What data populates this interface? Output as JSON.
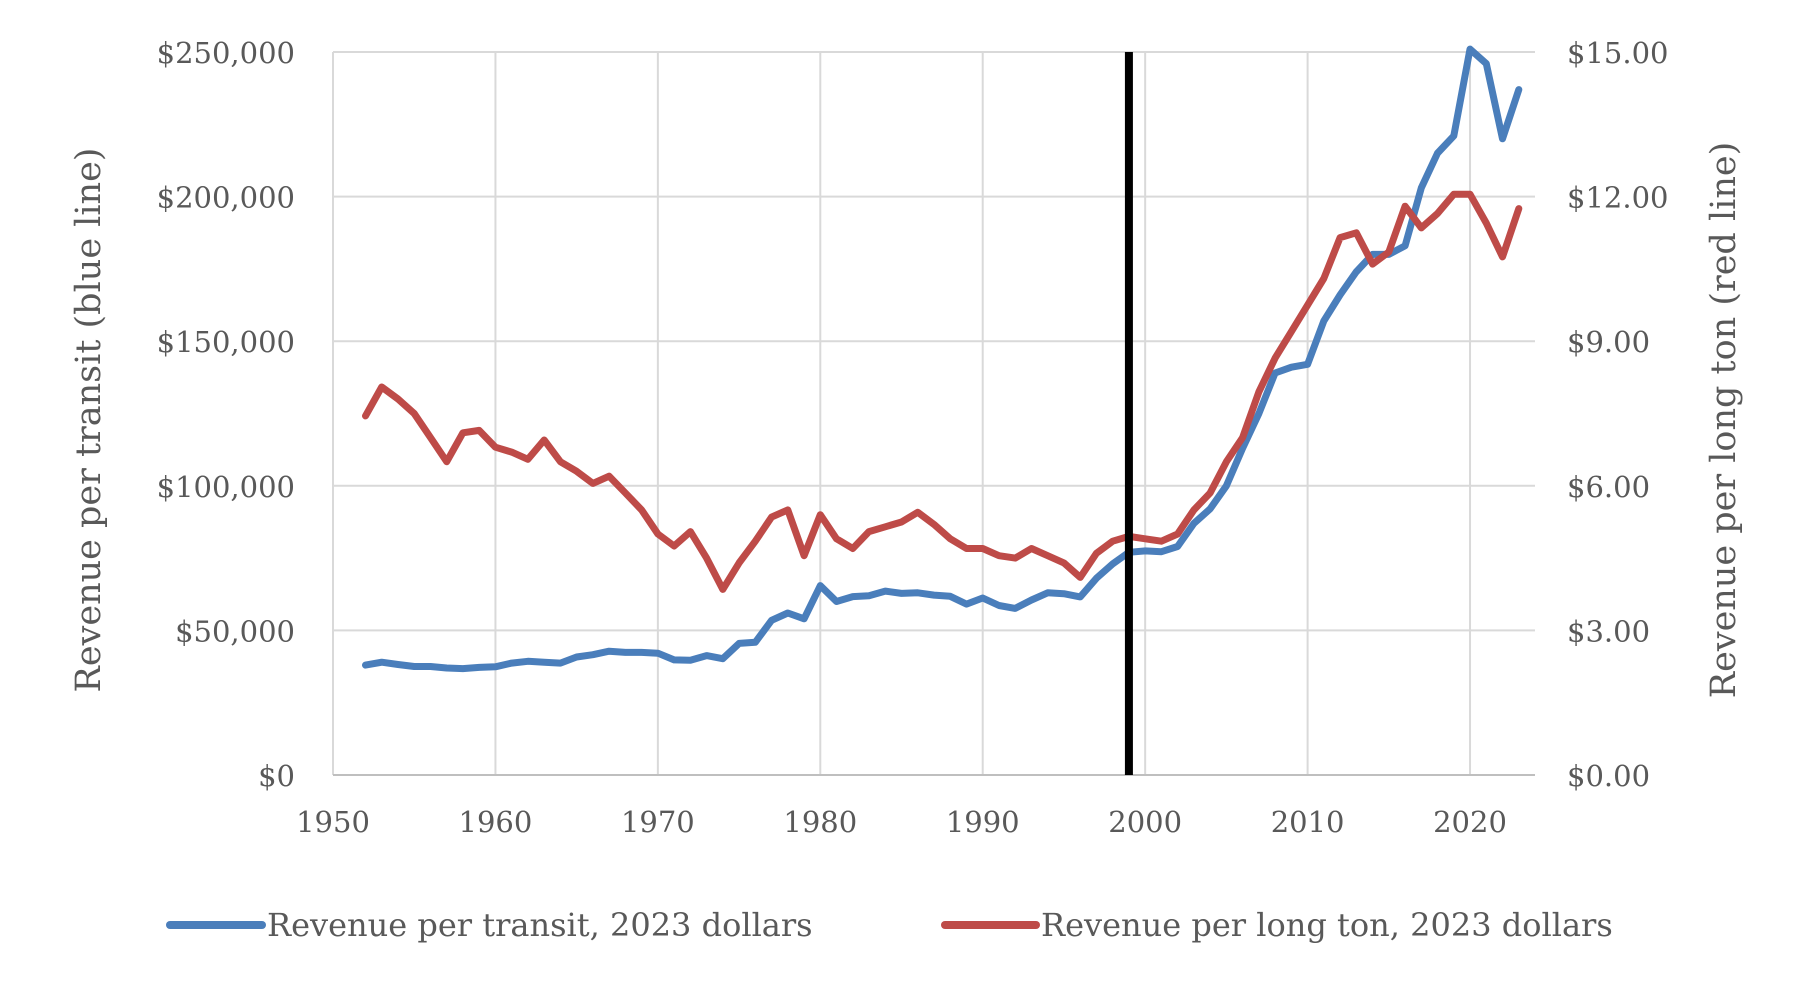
{
  "chart_data": {
    "type": "line",
    "title": "",
    "x": [
      1952,
      1953,
      1954,
      1955,
      1956,
      1957,
      1958,
      1959,
      1960,
      1961,
      1962,
      1963,
      1964,
      1965,
      1966,
      1967,
      1968,
      1969,
      1970,
      1971,
      1972,
      1973,
      1974,
      1975,
      1976,
      1977,
      1978,
      1979,
      1980,
      1981,
      1982,
      1983,
      1984,
      1985,
      1986,
      1987,
      1988,
      1989,
      1990,
      1991,
      1992,
      1993,
      1994,
      1995,
      1996,
      1997,
      1998,
      1999,
      2000,
      2001,
      2002,
      2003,
      2004,
      2005,
      2006,
      2007,
      2008,
      2009,
      2010,
      2011,
      2012,
      2013,
      2014,
      2015,
      2016,
      2017,
      2018,
      2019,
      2020,
      2021,
      2022,
      2023
    ],
    "xlim": [
      1950,
      2024
    ],
    "xticks": [
      "1950",
      "1960",
      "1970",
      "1980",
      "1990",
      "2000",
      "2010",
      "2020"
    ],
    "xtick_values": [
      1950,
      1960,
      1970,
      1980,
      1990,
      2000,
      2010,
      2020
    ],
    "left_axis": {
      "label": "Revenue per transit (blue line)",
      "ylim": [
        0,
        250000
      ],
      "ticks": [
        "$0",
        "$50,000",
        "$100,000",
        "$150,000",
        "$200,000",
        "$250,000"
      ],
      "tick_values": [
        0,
        50000,
        100000,
        150000,
        200000,
        250000
      ]
    },
    "right_axis": {
      "label": "Revenue per long ton (red line)",
      "ylim": [
        0,
        15
      ],
      "ticks": [
        "$0.00",
        "$3.00",
        "$6.00",
        "$9.00",
        "$12.00",
        "$15.00"
      ],
      "tick_values": [
        0,
        3,
        6,
        9,
        12,
        15
      ]
    },
    "grid": true,
    "vertical_marker_x": 1999,
    "legend_position": "bottom",
    "series": [
      {
        "name": "Revenue per transit, 2023 dollars",
        "axis": "left",
        "color": "#4a7ebb",
        "values": [
          38000,
          39000,
          38200,
          37500,
          37500,
          37000,
          36800,
          37200,
          37400,
          38700,
          39300,
          39000,
          38700,
          40800,
          41600,
          42800,
          42400,
          42400,
          42100,
          39800,
          39700,
          41300,
          40200,
          45500,
          45900,
          53500,
          56000,
          54000,
          65500,
          60000,
          61700,
          62000,
          63600,
          62800,
          63000,
          62200,
          61800,
          59100,
          61200,
          58600,
          57600,
          60500,
          63000,
          62700,
          61600,
          68000,
          73000,
          77000,
          77500,
          77200,
          79000,
          87000,
          92000,
          100000,
          113000,
          125000,
          139000,
          141000,
          142000,
          157000,
          166000,
          174000,
          180000,
          180000,
          183000,
          203000,
          215000,
          221000,
          251000,
          246000,
          220000,
          237000
        ]
      },
      {
        "name": "Revenue per long ton, 2023 dollars",
        "axis": "right",
        "color": "#be4b48",
        "values": [
          7.45,
          8.05,
          7.8,
          7.5,
          7.0,
          6.5,
          7.1,
          7.15,
          6.8,
          6.7,
          6.55,
          6.95,
          6.5,
          6.3,
          6.05,
          6.2,
          5.85,
          5.5,
          5.0,
          4.75,
          5.05,
          4.5,
          3.85,
          4.4,
          4.85,
          5.35,
          5.5,
          4.55,
          5.4,
          4.9,
          4.7,
          5.05,
          5.15,
          5.25,
          5.45,
          5.2,
          4.9,
          4.7,
          4.7,
          4.55,
          4.5,
          4.7,
          4.55,
          4.4,
          4.1,
          4.6,
          4.85,
          4.95,
          4.9,
          4.85,
          5.0,
          5.5,
          5.85,
          6.5,
          7.0,
          7.95,
          8.65,
          9.2,
          9.75,
          10.3,
          11.15,
          11.25,
          10.6,
          10.85,
          11.8,
          11.35,
          11.65,
          12.05,
          12.05,
          11.45,
          10.75,
          11.75
        ]
      }
    ]
  }
}
